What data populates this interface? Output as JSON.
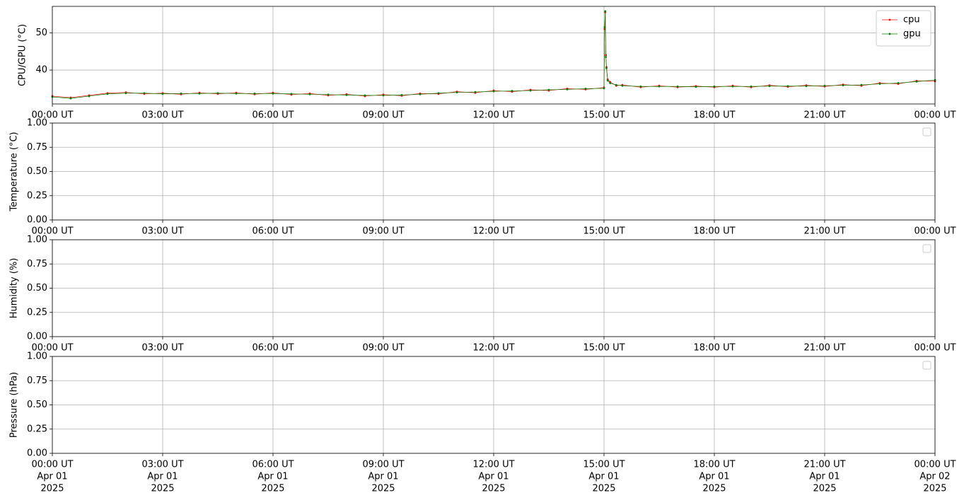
{
  "chart_data": [
    {
      "type": "line",
      "ylabel": "CPU/GPU (°C)",
      "grid": true,
      "legend": "upper right",
      "xlim": [
        "2025-04-01T00:00",
        "2025-04-02T00:00"
      ],
      "ylim": [
        30.9,
        57.1
      ],
      "yticks": [
        40,
        50
      ],
      "xticks": [
        {
          "value": "2025-04-01T00:00",
          "label": "00:00 UT"
        },
        {
          "value": "2025-04-01T03:00",
          "label": "03:00 UT"
        },
        {
          "value": "2025-04-01T06:00",
          "label": "06:00 UT"
        },
        {
          "value": "2025-04-01T09:00",
          "label": "09:00 UT"
        },
        {
          "value": "2025-04-01T12:00",
          "label": "12:00 UT"
        },
        {
          "value": "2025-04-01T15:00",
          "label": "15:00 UT"
        },
        {
          "value": "2025-04-01T18:00",
          "label": "18:00 UT"
        },
        {
          "value": "2025-04-01T21:00",
          "label": "21:00 UT"
        },
        {
          "value": "2025-04-02T00:00",
          "label": "00:00 UT"
        }
      ],
      "x": [
        "2025-04-01T00:00",
        "2025-04-01T00:30",
        "2025-04-01T01:00",
        "2025-04-01T01:30",
        "2025-04-01T02:00",
        "2025-04-01T02:30",
        "2025-04-01T03:00",
        "2025-04-01T03:30",
        "2025-04-01T04:00",
        "2025-04-01T04:30",
        "2025-04-01T05:00",
        "2025-04-01T05:30",
        "2025-04-01T06:00",
        "2025-04-01T06:30",
        "2025-04-01T07:00",
        "2025-04-01T07:30",
        "2025-04-01T08:00",
        "2025-04-01T08:30",
        "2025-04-01T09:00",
        "2025-04-01T09:30",
        "2025-04-01T10:00",
        "2025-04-01T10:30",
        "2025-04-01T11:00",
        "2025-04-01T11:30",
        "2025-04-01T12:00",
        "2025-04-01T12:30",
        "2025-04-01T13:00",
        "2025-04-01T13:30",
        "2025-04-01T14:00",
        "2025-04-01T14:30",
        "2025-04-01T15:00",
        "2025-04-01T15:01",
        "2025-04-01T15:02",
        "2025-04-01T15:03",
        "2025-04-01T15:04",
        "2025-04-01T15:06",
        "2025-04-01T15:10",
        "2025-04-01T15:20",
        "2025-04-01T15:30",
        "2025-04-01T16:00",
        "2025-04-01T16:30",
        "2025-04-01T17:00",
        "2025-04-01T17:30",
        "2025-04-01T18:00",
        "2025-04-01T18:30",
        "2025-04-01T19:00",
        "2025-04-01T19:30",
        "2025-04-01T20:00",
        "2025-04-01T20:30",
        "2025-04-01T21:00",
        "2025-04-01T21:30",
        "2025-04-01T22:00",
        "2025-04-01T22:30",
        "2025-04-01T23:00",
        "2025-04-01T23:30",
        "2025-04-02T00:00"
      ],
      "series": [
        {
          "name": "cpu",
          "color": "#ff0000",
          "values": [
            33.0,
            32.6,
            33.2,
            33.8,
            34.0,
            33.6,
            33.8,
            33.5,
            33.9,
            33.6,
            33.9,
            33.5,
            33.9,
            33.4,
            33.7,
            33.2,
            33.5,
            33.0,
            33.4,
            33.1,
            33.7,
            33.6,
            34.2,
            33.9,
            34.5,
            34.2,
            34.7,
            34.5,
            35.0,
            34.8,
            35.3,
            51.0,
            55.5,
            44.0,
            40.8,
            37.5,
            36.8,
            35.8,
            36.0,
            35.4,
            35.8,
            35.4,
            35.7,
            35.4,
            35.8,
            35.4,
            35.9,
            35.5,
            35.9,
            35.6,
            36.1,
            35.8,
            36.5,
            36.3,
            37.1,
            37.0
          ]
        },
        {
          "name": "gpu",
          "color": "#008000",
          "values": [
            32.8,
            32.4,
            33.0,
            33.6,
            33.8,
            33.8,
            33.6,
            33.7,
            33.7,
            33.8,
            33.7,
            33.7,
            33.7,
            33.6,
            33.5,
            33.4,
            33.3,
            33.2,
            33.2,
            33.3,
            33.5,
            33.8,
            34.0,
            34.1,
            34.3,
            34.4,
            34.5,
            34.7,
            34.8,
            35.0,
            35.1,
            51.5,
            55.8,
            43.5,
            40.5,
            37.2,
            36.5,
            36.0,
            35.8,
            35.6,
            35.6,
            35.6,
            35.5,
            35.6,
            35.6,
            35.6,
            35.7,
            35.7,
            35.7,
            35.8,
            35.9,
            36.0,
            36.3,
            36.5,
            36.9,
            37.3
          ]
        }
      ]
    },
    {
      "type": "line",
      "ylabel": "Temperature (°C)",
      "grid": true,
      "legend": "upper right",
      "xlim": [
        "2025-04-01T00:00",
        "2025-04-02T00:00"
      ],
      "ylim": [
        0,
        1
      ],
      "yticks": [
        {
          "value": 0,
          "label": "0.00"
        },
        {
          "value": 0.25,
          "label": "0.25"
        },
        {
          "value": 0.5,
          "label": "0.50"
        },
        {
          "value": 0.75,
          "label": "0.75"
        },
        {
          "value": 1,
          "label": "1.00"
        }
      ],
      "xticks": [
        {
          "value": "2025-04-01T00:00",
          "label": "00:00 UT"
        },
        {
          "value": "2025-04-01T03:00",
          "label": "03:00 UT"
        },
        {
          "value": "2025-04-01T06:00",
          "label": "06:00 UT"
        },
        {
          "value": "2025-04-01T09:00",
          "label": "09:00 UT"
        },
        {
          "value": "2025-04-01T12:00",
          "label": "12:00 UT"
        },
        {
          "value": "2025-04-01T15:00",
          "label": "15:00 UT"
        },
        {
          "value": "2025-04-01T18:00",
          "label": "18:00 UT"
        },
        {
          "value": "2025-04-01T21:00",
          "label": "21:00 UT"
        },
        {
          "value": "2025-04-02T00:00",
          "label": "00:00 UT"
        }
      ]
    },
    {
      "type": "line",
      "ylabel": "Humidity (%)",
      "grid": true,
      "legend": "upper right",
      "xlim": [
        "2025-04-01T00:00",
        "2025-04-02T00:00"
      ],
      "ylim": [
        0,
        1
      ],
      "yticks": [
        {
          "value": 0,
          "label": "0.00"
        },
        {
          "value": 0.25,
          "label": "0.25"
        },
        {
          "value": 0.5,
          "label": "0.50"
        },
        {
          "value": 0.75,
          "label": "0.75"
        },
        {
          "value": 1,
          "label": "1.00"
        }
      ],
      "xticks": [
        {
          "value": "2025-04-01T00:00",
          "label": "00:00 UT"
        },
        {
          "value": "2025-04-01T03:00",
          "label": "03:00 UT"
        },
        {
          "value": "2025-04-01T06:00",
          "label": "06:00 UT"
        },
        {
          "value": "2025-04-01T09:00",
          "label": "09:00 UT"
        },
        {
          "value": "2025-04-01T12:00",
          "label": "12:00 UT"
        },
        {
          "value": "2025-04-01T15:00",
          "label": "15:00 UT"
        },
        {
          "value": "2025-04-01T18:00",
          "label": "18:00 UT"
        },
        {
          "value": "2025-04-01T21:00",
          "label": "21:00 UT"
        },
        {
          "value": "2025-04-02T00:00",
          "label": "00:00 UT"
        }
      ]
    },
    {
      "type": "line",
      "ylabel": "Pressure (hPa)",
      "grid": true,
      "legend": "upper right",
      "xlim": [
        "2025-04-01T00:00",
        "2025-04-02T00:00"
      ],
      "ylim": [
        0,
        1
      ],
      "yticks": [
        {
          "value": 0,
          "label": "0.00"
        },
        {
          "value": 0.25,
          "label": "0.25"
        },
        {
          "value": 0.5,
          "label": "0.50"
        },
        {
          "value": 0.75,
          "label": "0.75"
        },
        {
          "value": 1,
          "label": "1.00"
        }
      ],
      "xticks": [
        {
          "value": "2025-04-01T00:00",
          "label": [
            "00:00 UT",
            "Apr 01",
            "2025"
          ]
        },
        {
          "value": "2025-04-01T03:00",
          "label": [
            "03:00 UT",
            "Apr 01",
            "2025"
          ]
        },
        {
          "value": "2025-04-01T06:00",
          "label": [
            "06:00 UT",
            "Apr 01",
            "2025"
          ]
        },
        {
          "value": "2025-04-01T09:00",
          "label": [
            "09:00 UT",
            "Apr 01",
            "2025"
          ]
        },
        {
          "value": "2025-04-01T12:00",
          "label": [
            "12:00 UT",
            "Apr 01",
            "2025"
          ]
        },
        {
          "value": "2025-04-01T15:00",
          "label": [
            "15:00 UT",
            "Apr 01",
            "2025"
          ]
        },
        {
          "value": "2025-04-01T18:00",
          "label": [
            "18:00 UT",
            "Apr 01",
            "2025"
          ]
        },
        {
          "value": "2025-04-01T21:00",
          "label": [
            "21:00 UT",
            "Apr 01",
            "2025"
          ]
        },
        {
          "value": "2025-04-02T00:00",
          "label": [
            "00:00 UT",
            "Apr 02",
            "2025"
          ]
        }
      ]
    }
  ]
}
